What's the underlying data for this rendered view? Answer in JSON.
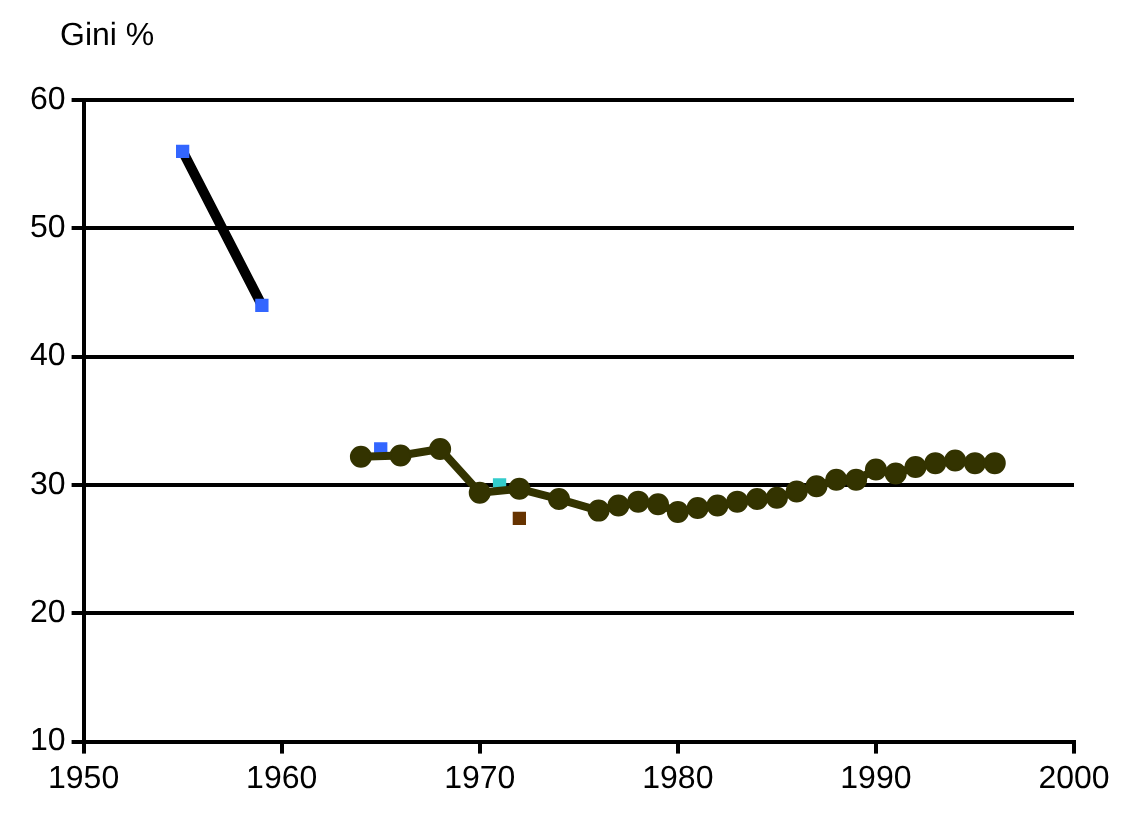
{
  "chart_data": {
    "type": "line",
    "ylabel": "Gini %",
    "xlim": [
      1950,
      2000
    ],
    "xticks": [
      1950,
      1960,
      1970,
      1980,
      1990,
      2000
    ],
    "ylim": [
      10,
      60
    ],
    "yticks": [
      10,
      20,
      30,
      40,
      50,
      60
    ],
    "grid": "y",
    "legend": false,
    "series": [
      {
        "type": "line",
        "color": "#000000",
        "marker": "none",
        "x": [
          1955,
          1959
        ],
        "values": [
          56,
          44
        ]
      },
      {
        "type": "scatter",
        "color": "#3366ff",
        "marker": "square",
        "x": [
          1955,
          1959,
          1965
        ],
        "values": [
          56,
          44,
          32.8
        ]
      },
      {
        "type": "scatter",
        "color": "#33cccc",
        "marker": "square",
        "x": [
          1971
        ],
        "values": [
          30.0
        ]
      },
      {
        "type": "scatter",
        "color": "#663300",
        "marker": "square",
        "x": [
          1972
        ],
        "values": [
          27.4
        ]
      },
      {
        "type": "line",
        "color": "#333300",
        "marker": "circle",
        "x": [
          1964,
          1966,
          1968,
          1970,
          1972,
          1974,
          1976,
          1977,
          1978,
          1979,
          1980,
          1981,
          1982,
          1983,
          1984,
          1985,
          1986,
          1987,
          1988,
          1989,
          1990,
          1991,
          1992,
          1993,
          1994,
          1995,
          1996
        ],
        "values": [
          32.2,
          32.3,
          32.8,
          29.4,
          29.7,
          28.9,
          28.0,
          28.4,
          28.7,
          28.5,
          27.9,
          28.2,
          28.4,
          28.7,
          28.9,
          29.0,
          29.5,
          29.9,
          30.4,
          30.4,
          31.2,
          30.9,
          31.4,
          31.7,
          31.9,
          31.7,
          31.7
        ]
      }
    ]
  }
}
